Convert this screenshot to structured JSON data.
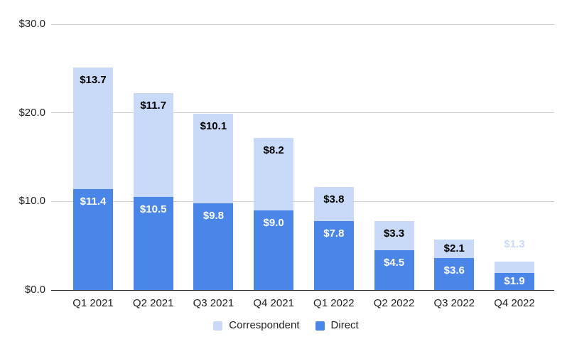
{
  "chart_data": {
    "type": "bar",
    "stacked": true,
    "title": "",
    "xlabel": "",
    "ylabel": "",
    "categories": [
      "Q1 2021",
      "Q2 2021",
      "Q3 2021",
      "Q4 2021",
      "Q1 2022",
      "Q2 2022",
      "Q3 2022",
      "Q4 2022"
    ],
    "series": [
      {
        "name": "Direct",
        "stack_position": "bottom",
        "color": "#4a86e8",
        "label_text_color": "#ffffff",
        "values": [
          11.4,
          10.5,
          9.8,
          9.0,
          7.8,
          4.5,
          3.6,
          1.9
        ],
        "labels": [
          "$11.4",
          "$10.5",
          "$9.8",
          "$9.0",
          "$7.8",
          "$4.5",
          "$3.6",
          "$1.9"
        ]
      },
      {
        "name": "Correspondent",
        "stack_position": "top",
        "color": "#c9daf8",
        "label_text_color": "#000000",
        "values": [
          13.7,
          11.7,
          10.1,
          8.2,
          3.8,
          3.3,
          2.1,
          1.3
        ],
        "labels": [
          "$13.7",
          "$11.7",
          "$10.1",
          "$8.2",
          "$3.8",
          "$3.3",
          "$2.1",
          "$1.3"
        ]
      }
    ],
    "y_axis": {
      "min": 0,
      "max": 30,
      "tick_step": 10,
      "tick_labels": [
        "$0.0",
        "$10.0",
        "$20.0",
        "$30.0"
      ]
    },
    "legend": {
      "position": "bottom",
      "items": [
        {
          "label": "Correspondent",
          "color": "#c9daf8"
        },
        {
          "label": "Direct",
          "color": "#4a86e8"
        }
      ]
    },
    "grid": true,
    "background_color": "#ffffff",
    "gridline_color": "#cccccc",
    "baseline_color": "#2b2b2b",
    "axis_text_color": "#202124"
  }
}
